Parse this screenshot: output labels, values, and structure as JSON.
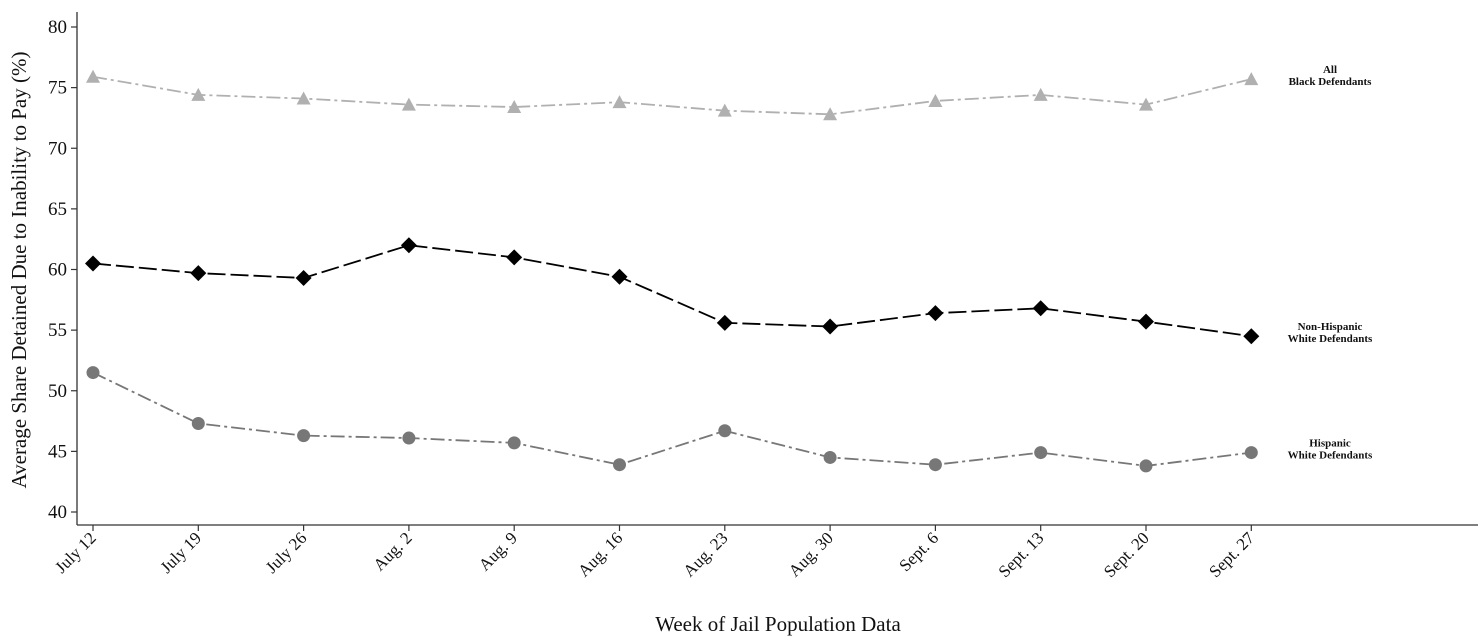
{
  "chart_data": {
    "type": "line",
    "title": "",
    "xlabel": "Week of Jail Population Data",
    "ylabel": "Average Share Detained Due to Inability to Pay (%)",
    "ylim": [
      40,
      80
    ],
    "yticks": [
      40,
      45,
      50,
      55,
      60,
      65,
      70,
      75,
      80
    ],
    "grid": false,
    "categories": [
      "July 12",
      "July 19",
      "July 26",
      "Aug. 2",
      "Aug. 9",
      "Aug. 16",
      "Aug. 23",
      "Aug. 30",
      "Sept. 6",
      "Sept. 13",
      "Sept. 20",
      "Sept. 27"
    ],
    "series": [
      {
        "name": "All Black Defendants",
        "label_lines": [
          "All",
          "Black Defendants"
        ],
        "values": [
          75.9,
          74.4,
          74.1,
          73.6,
          73.4,
          73.8,
          73.1,
          72.8,
          73.9,
          74.4,
          73.6,
          75.7
        ],
        "color": "#b0b0b0",
        "marker": "triangle",
        "dash": "dashdot"
      },
      {
        "name": "Non-Hispanic White Defendants",
        "label_lines": [
          "Non-Hispanic",
          "White Defendants"
        ],
        "values": [
          60.5,
          59.7,
          59.3,
          62.0,
          61.0,
          59.4,
          55.6,
          55.3,
          56.4,
          56.8,
          55.7,
          54.5
        ],
        "color": "#000000",
        "marker": "diamond",
        "dash": "dash"
      },
      {
        "name": "Hispanic White Defendants",
        "label_lines": [
          "Hispanic",
          "White Defendants"
        ],
        "values": [
          51.5,
          47.3,
          46.3,
          46.1,
          45.7,
          43.9,
          46.7,
          44.5,
          43.9,
          44.9,
          43.8,
          44.9
        ],
        "color": "#777777",
        "marker": "circle",
        "dash": "dashdot"
      }
    ]
  }
}
